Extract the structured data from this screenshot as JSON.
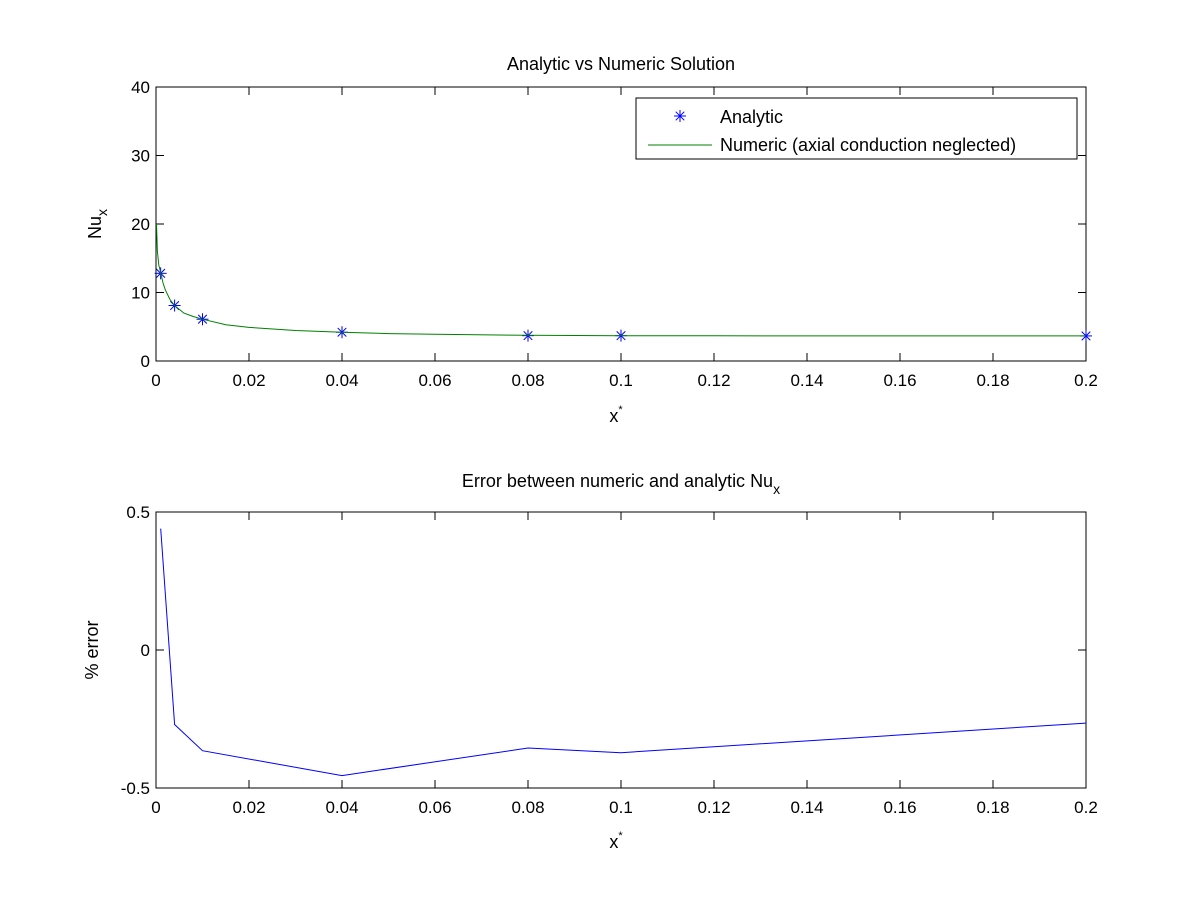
{
  "chart_data": [
    {
      "type": "line",
      "title": "Analytic vs Numeric Solution",
      "xlabel": {
        "base": "x",
        "sup": "*"
      },
      "ylabel": {
        "base": "Nu",
        "sub": "x"
      },
      "xlim": [
        0,
        0.2
      ],
      "ylim": [
        0,
        40
      ],
      "xticks": [
        0,
        0.02,
        0.04,
        0.06,
        0.08,
        0.1,
        0.12,
        0.14,
        0.16,
        0.18,
        0.2
      ],
      "xtick_labels": [
        "0",
        "0.02",
        "0.04",
        "0.06",
        "0.08",
        "0.1",
        "0.12",
        "0.14",
        "0.16",
        "0.18",
        "0.2"
      ],
      "yticks": [
        0,
        10,
        20,
        30,
        40
      ],
      "ytick_labels": [
        "0",
        "10",
        "20",
        "30",
        "40"
      ],
      "grid": false,
      "legend_position": "top-right",
      "series": [
        {
          "name": "Analytic",
          "style": "markers",
          "marker": "asterisk",
          "color": "#0000ff",
          "x": [
            0.001,
            0.004,
            0.01,
            0.04,
            0.08,
            0.1,
            0.2
          ],
          "y": [
            12.8,
            8.1,
            6.1,
            4.2,
            3.7,
            3.7,
            3.66
          ]
        },
        {
          "name": "Numeric (axial conduction neglected)",
          "style": "line",
          "color": "#008000",
          "x": [
            0.0001,
            0.0003,
            0.0006,
            0.001,
            0.0015,
            0.002,
            0.003,
            0.004,
            0.006,
            0.008,
            0.01,
            0.015,
            0.02,
            0.03,
            0.04,
            0.05,
            0.06,
            0.08,
            0.1,
            0.12,
            0.15,
            0.2
          ],
          "y": [
            20.0,
            16.0,
            14.0,
            12.9,
            11.4,
            10.4,
            9.0,
            8.1,
            7.0,
            6.5,
            6.1,
            5.3,
            4.9,
            4.45,
            4.2,
            4.0,
            3.9,
            3.75,
            3.7,
            3.68,
            3.66,
            3.66
          ]
        }
      ]
    },
    {
      "type": "line",
      "title": {
        "base": "Error between numeric and analytic Nu",
        "sub": "x"
      },
      "xlabel": {
        "base": "x",
        "sup": "*"
      },
      "ylabel": {
        "base": "% error"
      },
      "xlim": [
        0,
        0.2
      ],
      "ylim": [
        -0.5,
        0.5
      ],
      "xticks": [
        0,
        0.02,
        0.04,
        0.06,
        0.08,
        0.1,
        0.12,
        0.14,
        0.16,
        0.18,
        0.2
      ],
      "xtick_labels": [
        "0",
        "0.02",
        "0.04",
        "0.06",
        "0.08",
        "0.1",
        "0.12",
        "0.14",
        "0.16",
        "0.18",
        "0.2"
      ],
      "yticks": [
        -0.5,
        0,
        0.5
      ],
      "ytick_labels": [
        "-0.5",
        "0",
        "0.5"
      ],
      "grid": false,
      "series": [
        {
          "style": "line",
          "color": "#0000ff",
          "x": [
            0.001,
            0.004,
            0.01,
            0.04,
            0.08,
            0.1,
            0.2
          ],
          "y": [
            0.44,
            -0.27,
            -0.365,
            -0.455,
            -0.355,
            -0.372,
            -0.265
          ]
        }
      ]
    }
  ]
}
